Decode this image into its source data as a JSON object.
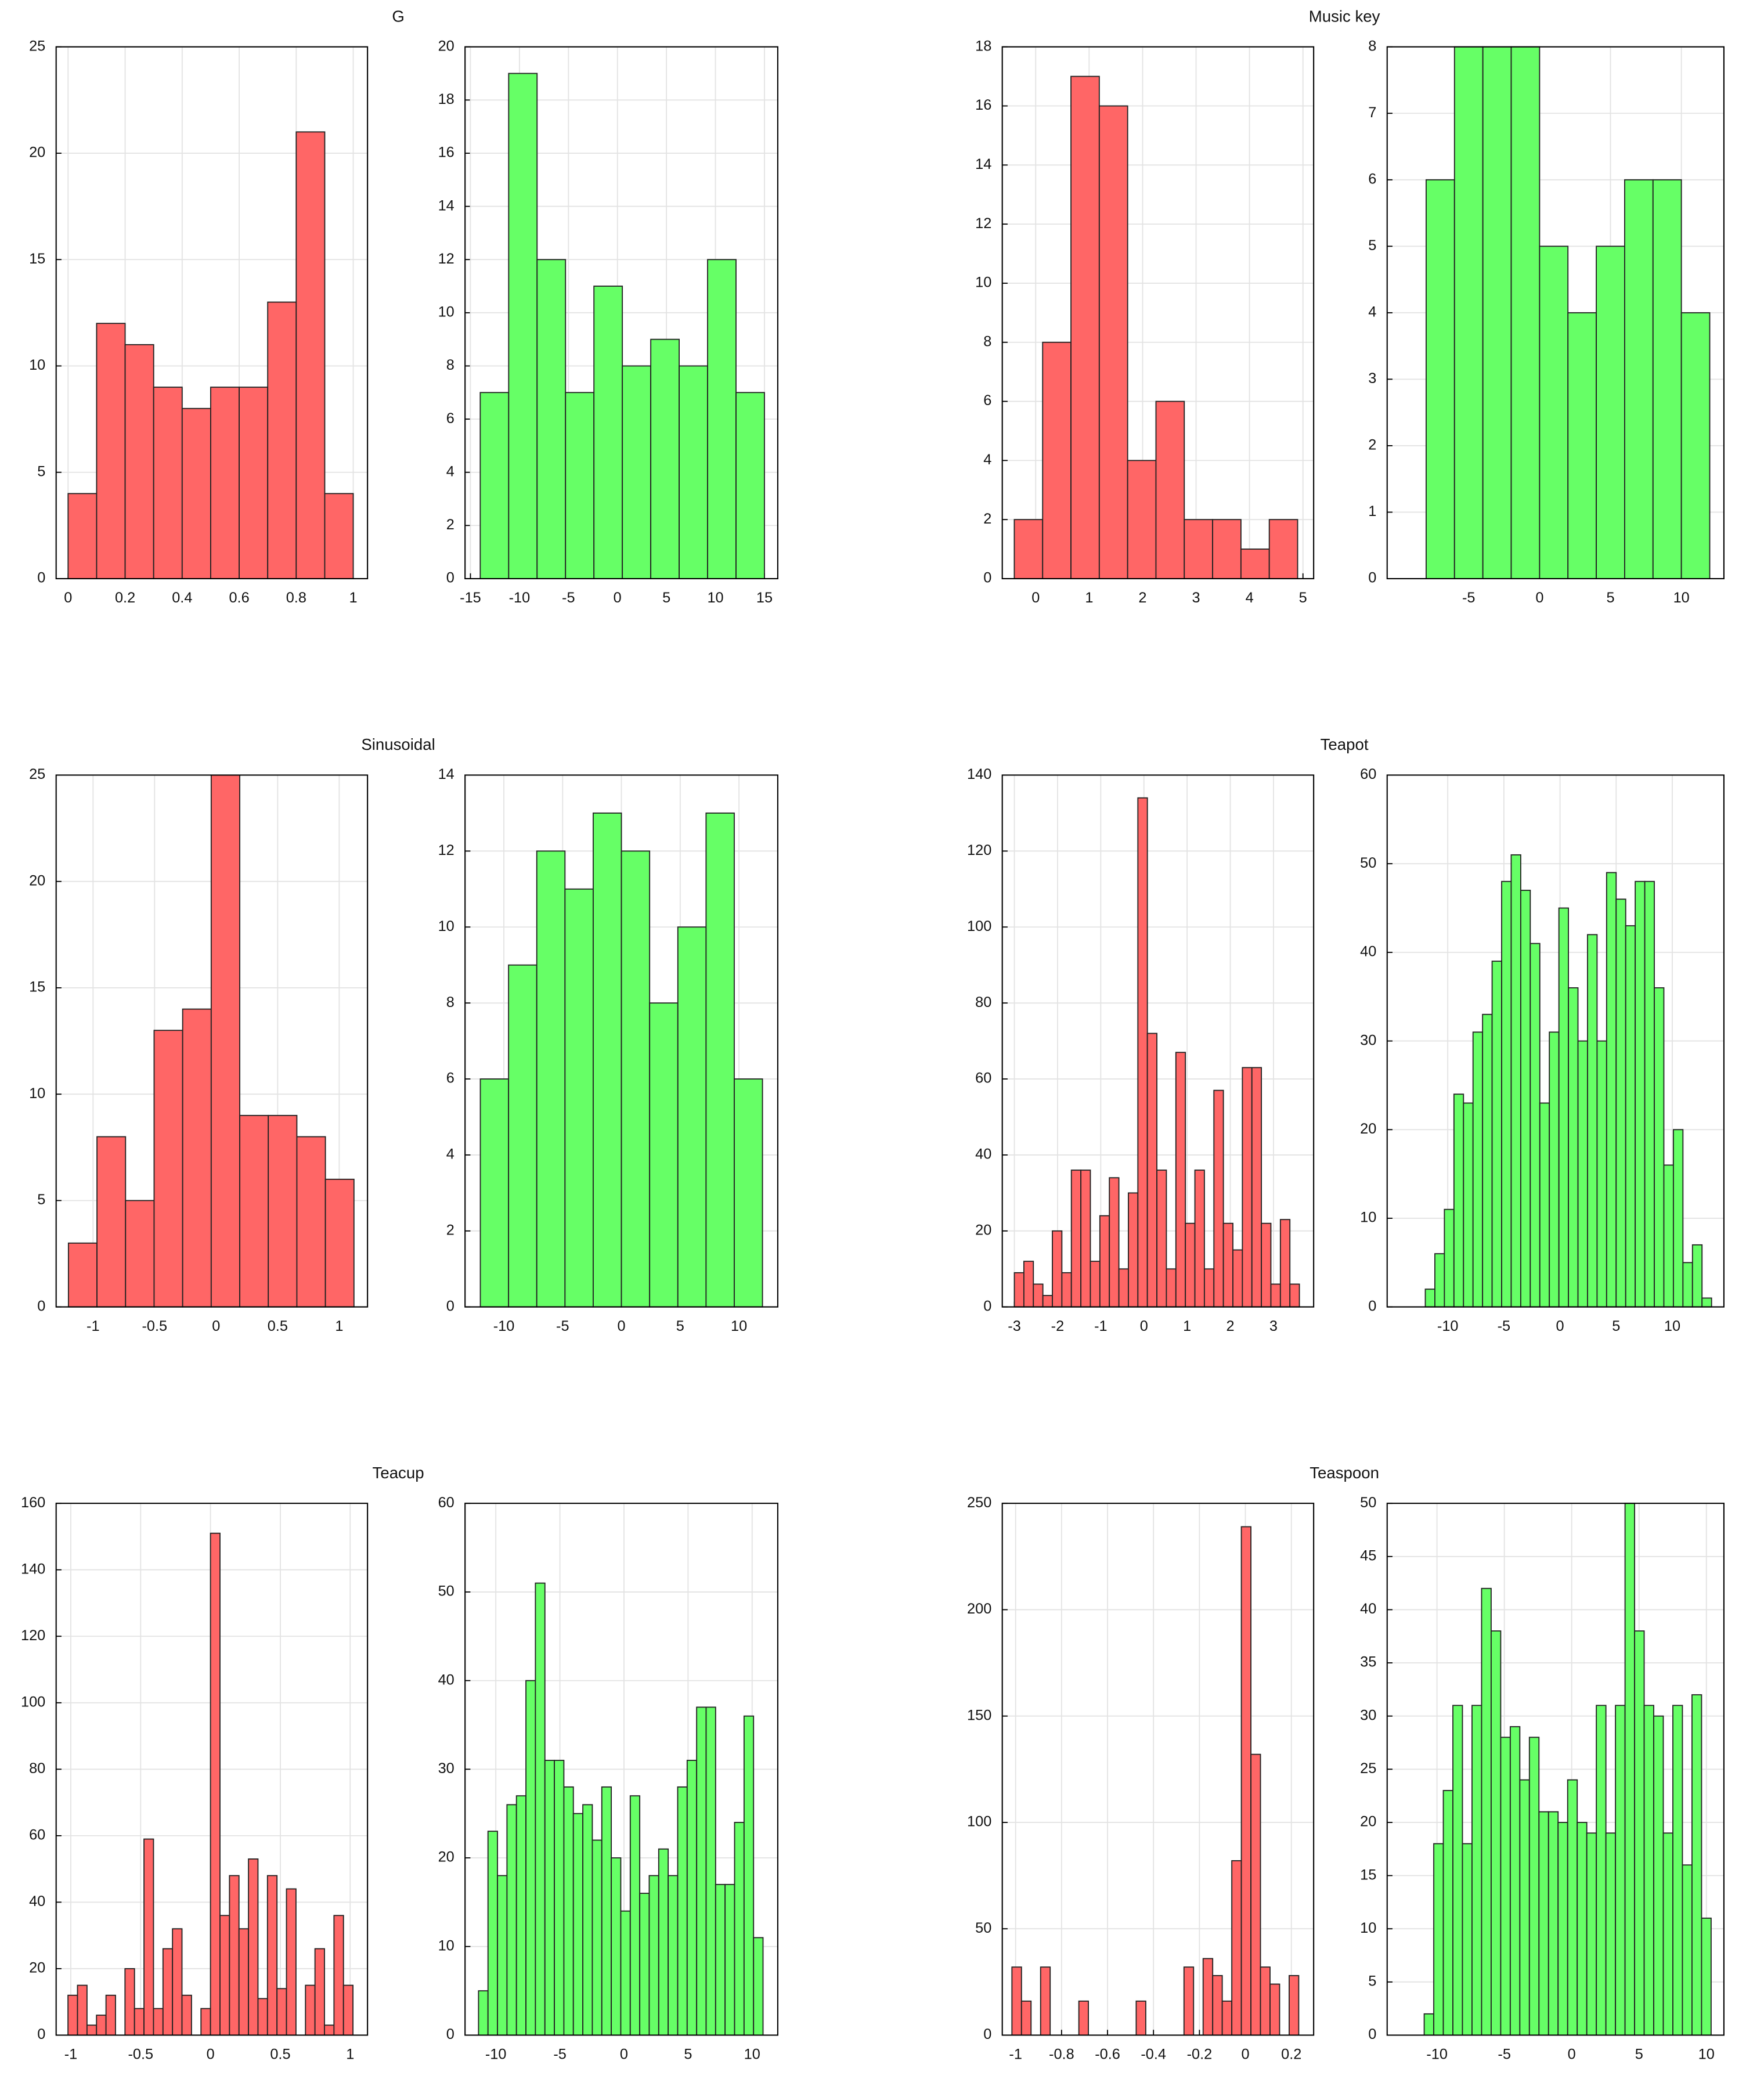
{
  "chart_data": [
    {
      "type": "histogram",
      "title": "G",
      "color": "#ff6666",
      "grid": true,
      "bins": [
        0,
        0.1,
        0.2,
        0.3,
        0.4,
        0.5,
        0.6,
        0.7,
        0.8,
        0.9,
        1
      ],
      "values": [
        4,
        12,
        11,
        9,
        8,
        9,
        9,
        13,
        21,
        4
      ],
      "xlim": [
        -0.042,
        1.05
      ],
      "xticks": [
        0,
        0.2,
        0.4,
        0.6,
        0.8,
        1
      ],
      "ylim": [
        0,
        25
      ],
      "yticks": [
        0,
        5,
        10,
        15,
        20,
        25
      ]
    },
    {
      "type": "histogram",
      "color": "#66ff66",
      "grid": true,
      "bins": [
        -14,
        -11.1,
        -8.2,
        -5.3,
        -2.4,
        0.5,
        3.4,
        6.3,
        9.2,
        12.1,
        15
      ],
      "values": [
        7,
        19,
        12,
        7,
        11,
        8,
        9,
        8,
        12,
        7
      ],
      "xlim": [
        -15.55,
        16.36
      ],
      "xticks": [
        -15,
        -10,
        -5,
        0,
        5,
        10,
        15
      ],
      "ylim": [
        0,
        20
      ],
      "yticks": [
        0,
        2,
        4,
        6,
        8,
        10,
        12,
        14,
        16,
        18,
        20
      ]
    },
    {
      "type": "histogram",
      "title": "Music key",
      "color": "#ff6666",
      "grid": true,
      "bins": [
        -0.4,
        0.13,
        0.66,
        1.19,
        1.72,
        2.25,
        2.78,
        3.31,
        3.84,
        4.37,
        4.9
      ],
      "values": [
        2,
        8,
        17,
        16,
        4,
        6,
        2,
        2,
        1,
        2
      ],
      "xlim": [
        -0.625,
        5.2
      ],
      "xticks": [
        0,
        1,
        2,
        3,
        4,
        5
      ],
      "ylim": [
        0,
        18
      ],
      "yticks": [
        0,
        2,
        4,
        6,
        8,
        10,
        12,
        14,
        16,
        18
      ]
    },
    {
      "type": "histogram",
      "color": "#66ff66",
      "grid": true,
      "bins": [
        -8,
        -6,
        -4,
        -2,
        0,
        2,
        4,
        6,
        8,
        10,
        12
      ],
      "values": [
        6,
        8,
        8,
        8,
        5,
        4,
        5,
        6,
        6,
        4
      ],
      "xlim": [
        -10.75,
        13
      ],
      "xticks": [
        -5,
        0,
        5,
        10
      ],
      "ylim": [
        0,
        8
      ],
      "yticks": [
        0,
        1,
        2,
        3,
        4,
        5,
        6,
        7,
        8
      ]
    },
    {
      "type": "histogram",
      "title": "Sinusoidal",
      "color": "#ff6666",
      "grid": true,
      "bins": [
        -1.2,
        -0.968,
        -0.736,
        -0.504,
        -0.272,
        -0.04,
        0.192,
        0.424,
        0.656,
        0.888,
        1.12
      ],
      "values": [
        3,
        8,
        5,
        13,
        14,
        25,
        9,
        9,
        8,
        6
      ],
      "xlim": [
        -1.3,
        1.23
      ],
      "xticks": [
        -1,
        -0.5,
        0,
        0.5,
        1
      ],
      "ylim": [
        0,
        25
      ],
      "yticks": [
        0,
        5,
        10,
        15,
        20,
        25
      ]
    },
    {
      "type": "histogram",
      "color": "#66ff66",
      "grid": true,
      "bins": [
        -12,
        -9.6,
        -7.2,
        -4.8,
        -2.4,
        0,
        2.4,
        4.8,
        7.2,
        9.6,
        12
      ],
      "values": [
        6,
        9,
        12,
        11,
        13,
        12,
        8,
        10,
        13,
        6
      ],
      "xlim": [
        -13.3,
        13.3
      ],
      "xticks": [
        -10,
        -5,
        0,
        5,
        10
      ],
      "ylim": [
        0,
        14
      ],
      "yticks": [
        0,
        2,
        4,
        6,
        8,
        10,
        12,
        14
      ]
    },
    {
      "type": "histogram",
      "title": "Teapot",
      "color": "#ff6666",
      "grid": true,
      "bins": [
        -3,
        -2.78,
        -2.56,
        -2.34,
        -2.12,
        -1.9,
        -1.68,
        -1.46,
        -1.24,
        -1.02,
        -0.8,
        -0.58,
        -0.36,
        -0.14,
        0.08,
        0.3,
        0.52,
        0.74,
        0.96,
        1.18,
        1.4,
        1.62,
        1.84,
        2.06,
        2.28,
        2.5,
        2.72,
        2.94,
        3.16,
        3.38,
        3.6
      ],
      "values": [
        9,
        12,
        6,
        3,
        20,
        9,
        36,
        36,
        12,
        24,
        34,
        10,
        30,
        134,
        72,
        36,
        10,
        67,
        22,
        36,
        10,
        57,
        22,
        15,
        63,
        63,
        22,
        6,
        23,
        6
      ],
      "xlim": [
        -3.28,
        3.93
      ],
      "xticks": [
        -3,
        -2,
        -1,
        0,
        1,
        2,
        3
      ],
      "ylim": [
        0,
        140
      ],
      "yticks": [
        0,
        20,
        40,
        60,
        80,
        100,
        120,
        140
      ]
    },
    {
      "type": "histogram",
      "color": "#66ff66",
      "grid": true,
      "bins": [
        -12,
        -11.15,
        -10.3,
        -9.45,
        -8.6,
        -7.75,
        -6.9,
        -6.05,
        -5.2,
        -4.35,
        -3.5,
        -2.65,
        -1.8,
        -0.95,
        -0.1,
        0.75,
        1.6,
        2.45,
        3.3,
        4.15,
        5,
        5.85,
        6.7,
        7.55,
        8.4,
        9.25,
        10.1,
        10.95,
        11.8,
        12.65,
        13.5
      ],
      "values": [
        2,
        6,
        11,
        24,
        23,
        31,
        33,
        39,
        48,
        51,
        47,
        41,
        23,
        31,
        45,
        36,
        30,
        42,
        30,
        49,
        46,
        43,
        48,
        48,
        36,
        16,
        20,
        5,
        7,
        1
      ],
      "xlim": [
        -15.4,
        14.6
      ],
      "xticks": [
        -10,
        -5,
        0,
        5,
        10
      ],
      "ylim": [
        0,
        60
      ],
      "yticks": [
        0,
        10,
        20,
        30,
        40,
        50,
        60
      ]
    },
    {
      "type": "histogram",
      "title": "Teacup",
      "color": "#ff6666",
      "grid": true,
      "bins": [
        -1.02,
        -0.952,
        -0.884,
        -0.816,
        -0.748,
        -0.68,
        -0.612,
        -0.544,
        -0.476,
        -0.408,
        -0.34,
        -0.272,
        -0.204,
        -0.136,
        -0.068,
        0,
        0.068,
        0.136,
        0.204,
        0.272,
        0.34,
        0.408,
        0.476,
        0.544,
        0.612,
        0.68,
        0.748,
        0.816,
        0.884,
        0.952,
        1.02
      ],
      "values": [
        12,
        15,
        3,
        6,
        12,
        0,
        20,
        8,
        59,
        8,
        26,
        32,
        12,
        0,
        8,
        151,
        36,
        48,
        32,
        53,
        11,
        48,
        14,
        44,
        0,
        15,
        26,
        3,
        36,
        15
      ],
      "xlim": [
        -1.105,
        1.124
      ],
      "xticks": [
        -1,
        -0.5,
        0,
        0.5,
        1
      ],
      "ylim": [
        0,
        160
      ],
      "yticks": [
        0,
        20,
        40,
        60,
        80,
        100,
        120,
        140,
        160
      ]
    },
    {
      "type": "histogram",
      "color": "#66ff66",
      "grid": true,
      "bins": [
        -11.35,
        -10.61,
        -9.87,
        -9.13,
        -8.39,
        -7.65,
        -6.91,
        -6.17,
        -5.43,
        -4.69,
        -3.95,
        -3.21,
        -2.47,
        -1.73,
        -0.99,
        -0.25,
        0.49,
        1.23,
        1.97,
        2.71,
        3.45,
        4.19,
        4.93,
        5.67,
        6.41,
        7.15,
        7.89,
        8.63,
        9.37,
        10.11,
        10.85
      ],
      "values": [
        5,
        23,
        18,
        26,
        27,
        40,
        51,
        31,
        31,
        28,
        25,
        26,
        22,
        28,
        20,
        14,
        27,
        16,
        18,
        21,
        18,
        28,
        31,
        37,
        37,
        17,
        17,
        24,
        36,
        11
      ],
      "xlim": [
        -12.4,
        12
      ],
      "xticks": [
        -10,
        -5,
        0,
        5,
        10
      ],
      "ylim": [
        0,
        60
      ],
      "yticks": [
        0,
        10,
        20,
        30,
        40,
        50,
        60
      ]
    },
    {
      "type": "histogram",
      "title": "Teaspoon",
      "color": "#ff6666",
      "grid": true,
      "bins": [
        -1.016,
        -0.9744,
        -0.9328,
        -0.8912,
        -0.8496,
        -0.808,
        -0.7664,
        -0.7248,
        -0.6832,
        -0.6416,
        -0.6,
        -0.5584,
        -0.5168,
        -0.4752,
        -0.4336,
        -0.392,
        -0.3504,
        -0.3088,
        -0.2672,
        -0.2256,
        -0.184,
        -0.1424,
        -0.1008,
        -0.0592,
        -0.0176,
        0.024,
        0.0656,
        0.1072,
        0.1488,
        0.1904,
        0.232
      ],
      "values": [
        32,
        16,
        0,
        32,
        0,
        0,
        0,
        16,
        0,
        0,
        0,
        0,
        0,
        16,
        0,
        0,
        0,
        0,
        32,
        0,
        36,
        28,
        16,
        82,
        239,
        132,
        32,
        24,
        0,
        28
      ],
      "xlim": [
        -1.058,
        0.297
      ],
      "xticks": [
        -1,
        -0.8,
        -0.6,
        -0.4,
        -0.2,
        0,
        0.2
      ],
      "ylim": [
        0,
        250
      ],
      "yticks": [
        0,
        50,
        100,
        150,
        200,
        250
      ]
    },
    {
      "type": "histogram",
      "color": "#66ff66",
      "grid": true,
      "bins": [
        -10.95,
        -10.24,
        -9.53,
        -8.82,
        -8.11,
        -7.4,
        -6.69,
        -5.98,
        -5.27,
        -4.56,
        -3.85,
        -3.14,
        -2.43,
        -1.72,
        -1.01,
        -0.3,
        0.41,
        1.12,
        1.83,
        2.54,
        3.25,
        3.96,
        4.67,
        5.38,
        6.09,
        6.8,
        7.51,
        8.22,
        8.93,
        9.64,
        10.35
      ],
      "values": [
        2,
        18,
        23,
        31,
        18,
        31,
        42,
        38,
        28,
        29,
        24,
        28,
        21,
        21,
        20,
        24,
        20,
        19,
        31,
        19,
        31,
        50,
        38,
        31,
        30,
        19,
        31,
        16,
        32,
        11
      ],
      "xlim": [
        -13.7,
        11.3
      ],
      "xticks": [
        -10,
        -5,
        0,
        5,
        10
      ],
      "ylim": [
        0,
        50
      ],
      "yticks": [
        0,
        5,
        10,
        15,
        20,
        25,
        30,
        35,
        40,
        45,
        50
      ]
    }
  ]
}
